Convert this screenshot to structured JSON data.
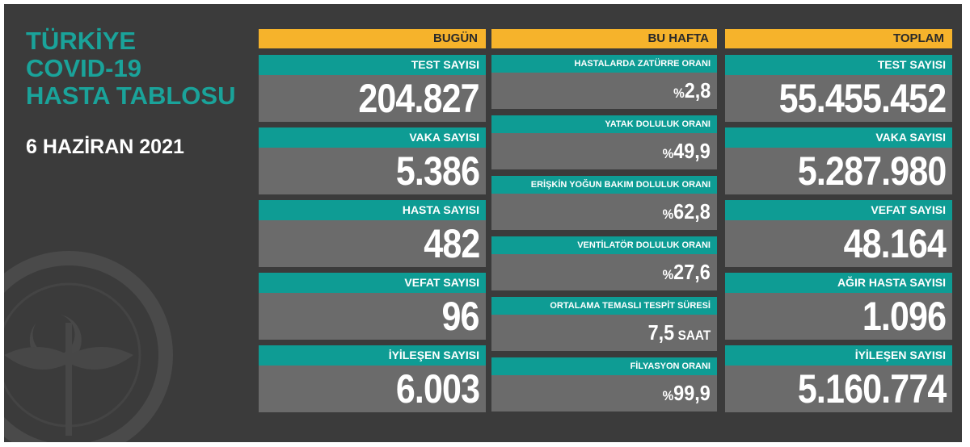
{
  "header": {
    "title_lines": [
      "TÜRKİYE",
      "COVID-19",
      "HASTA TABLOSU"
    ],
    "date": "6 HAZİRAN 2021"
  },
  "columns": [
    {
      "heading": "BUGÜN",
      "items": [
        {
          "label": "TEST SAYISI",
          "value": "204.827"
        },
        {
          "label": "VAKA SAYISI",
          "value": "5.386"
        },
        {
          "label": "HASTA SAYISI",
          "value": "482"
        },
        {
          "label": "VEFAT SAYISI",
          "value": "96"
        },
        {
          "label": "İYİLEŞEN SAYISI",
          "value": "6.003"
        }
      ]
    },
    {
      "heading": "BU HAFTA",
      "items": [
        {
          "label": "HASTALARDA ZATÜRRE ORANI",
          "prefix": "%",
          "value": "2,8"
        },
        {
          "label": "YATAK DOLULUK ORANI",
          "prefix": "%",
          "value": "49,9"
        },
        {
          "label": "ERİŞKİN YOĞUN BAKIM DOLULUK ORANI",
          "prefix": "%",
          "value": "62,8"
        },
        {
          "label": "VENTİLATÖR DOLULUK ORANI",
          "prefix": "%",
          "value": "27,6"
        },
        {
          "label": "ORTALAMA TEMASLI TESPİT SÜRESİ",
          "value": "7,5",
          "suffix": "SAAT"
        },
        {
          "label": "FİLYASYON ORANI",
          "prefix": "%",
          "value": "99,9"
        }
      ]
    },
    {
      "heading": "TOPLAM",
      "items": [
        {
          "label": "TEST SAYISI",
          "value": "55.455.452"
        },
        {
          "label": "VAKA SAYISI",
          "value": "5.287.980"
        },
        {
          "label": "VEFAT SAYISI",
          "value": "48.164"
        },
        {
          "label": "AĞIR HASTA SAYISI",
          "value": "1.096"
        },
        {
          "label": "İYİLEŞEN SAYISI",
          "value": "5.160.774"
        }
      ]
    }
  ]
}
